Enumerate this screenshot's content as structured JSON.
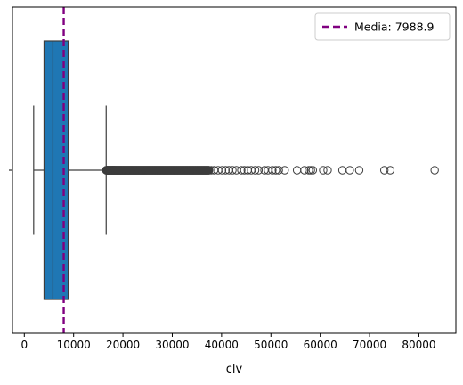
{
  "chart_data": {
    "type": "box",
    "orientation": "horizontal",
    "xlabel": "clv",
    "xlim": [
      -2400,
      87500
    ],
    "xticks": [
      0,
      10000,
      20000,
      30000,
      40000,
      50000,
      60000,
      70000,
      80000
    ],
    "xtick_labels": [
      "0",
      "10000",
      "20000",
      "30000",
      "40000",
      "50000",
      "60000",
      "70000",
      "80000"
    ],
    "box": {
      "whisker_low": 1900,
      "q1": 4000,
      "median": 5800,
      "q3": 8900,
      "whisker_high": 16600,
      "color": "#1f77b4",
      "edge_color": "#3d3d3d"
    },
    "outliers": {
      "dense_range": [
        16600,
        37500
      ],
      "individual": [
        37900,
        38500,
        39300,
        40100,
        40800,
        41500,
        42200,
        43000,
        44000,
        44600,
        45300,
        46000,
        46800,
        47500,
        48700,
        49400,
        50300,
        51000,
        51600,
        52800,
        55300,
        56800,
        57700,
        58100,
        58500,
        60600,
        61500,
        64500,
        66000,
        67900,
        73000,
        74200,
        83200
      ]
    },
    "mean_line": {
      "value": 7988.9,
      "color": "#800080",
      "style": "dashed"
    },
    "legend": {
      "position": "top-right",
      "entries": [
        {
          "label": "Media: 7988.9",
          "color": "#800080",
          "style": "dashed"
        }
      ]
    }
  }
}
